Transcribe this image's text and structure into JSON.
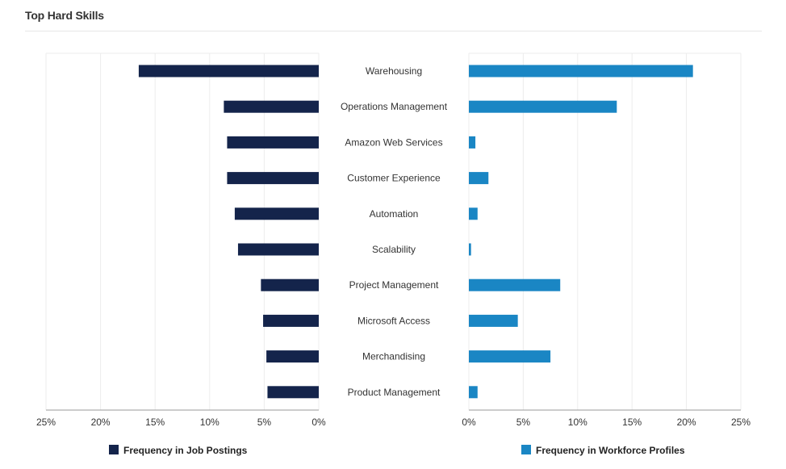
{
  "page": {
    "title": "Top Hard Skills"
  },
  "chart_data": {
    "type": "bar",
    "orientation": "horizontal-butterfly",
    "categories": [
      "Warehousing",
      "Operations Management",
      "Amazon Web Services",
      "Customer Experience",
      "Automation",
      "Scalability",
      "Project Management",
      "Microsoft Access",
      "Merchandising",
      "Product Management"
    ],
    "series": [
      {
        "name": "Frequency in Job Postings",
        "color": "#14244b",
        "side": "left",
        "values": [
          16.5,
          8.7,
          8.4,
          8.4,
          7.7,
          7.4,
          5.3,
          5.1,
          4.8,
          4.7
        ]
      },
      {
        "name": "Frequency in Workforce Profiles",
        "color": "#1a86c4",
        "side": "right",
        "values": [
          20.6,
          13.6,
          0.6,
          1.8,
          0.8,
          0.2,
          8.4,
          4.5,
          7.5,
          0.8
        ]
      }
    ],
    "ticks": [
      "25%",
      "20%",
      "15%",
      "10%",
      "5%",
      "0%"
    ],
    "right_ticks": [
      "0%",
      "5%",
      "10%",
      "15%",
      "20%",
      "25%"
    ],
    "xlim": [
      0,
      25
    ],
    "unit": "%",
    "grid": true,
    "legend_position": "bottom"
  }
}
